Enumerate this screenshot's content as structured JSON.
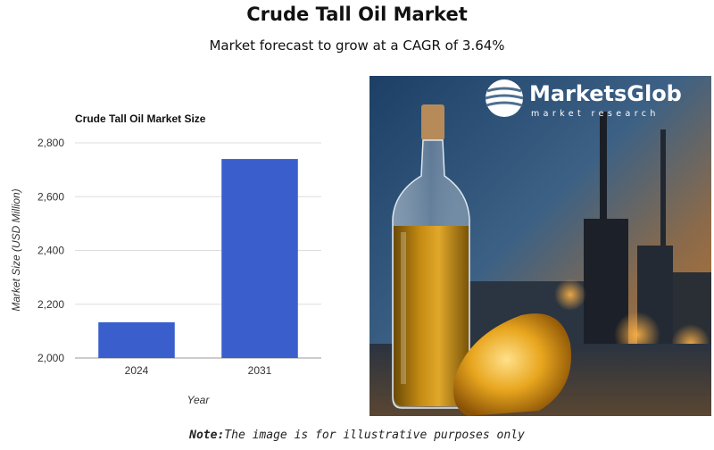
{
  "header": {
    "title": "Crude Tall Oil Market",
    "subtitle": "Market forecast to grow at a CAGR of 3.64%"
  },
  "chart_data": {
    "type": "bar",
    "title": "Crude Tall Oil Market Size",
    "categories": [
      "2024",
      "2031"
    ],
    "values": [
      2133,
      2740
    ],
    "xlabel": "Year",
    "ylabel": "Market Size (USD Million)",
    "ylim": [
      2000,
      2800
    ],
    "yticks": [
      2000,
      2200,
      2400,
      2600,
      2800
    ],
    "ytick_labels": [
      "2,000",
      "2,200",
      "2,400",
      "2,600",
      "2,800"
    ],
    "grid": true,
    "bar_color": "#3a5fcd"
  },
  "image": {
    "logo_name": "MarketsGlob",
    "logo_tagline": "market research",
    "logo_icon": "globe-icon"
  },
  "note": {
    "label": "Note:",
    "text": "The image is for illustrative purposes only"
  }
}
